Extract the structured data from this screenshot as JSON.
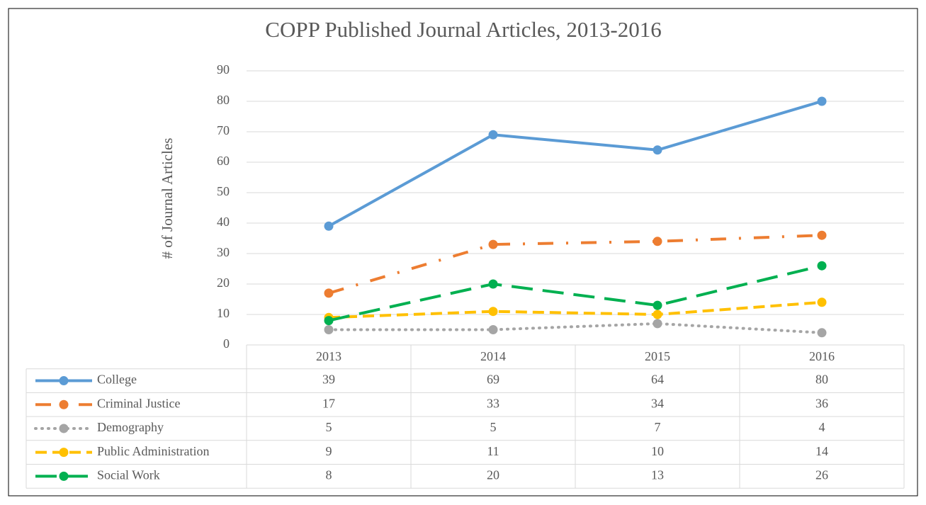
{
  "chart_data": {
    "type": "line",
    "title": "COPP Published Journal Articles, 2013-2016",
    "y_label": "# of Journal Articles",
    "categories": [
      "2013",
      "2014",
      "2015",
      "2016"
    ],
    "series": [
      {
        "name": "College",
        "color": "#5b9bd5",
        "style": "solid",
        "values": [
          39,
          69,
          64,
          80
        ]
      },
      {
        "name": "Criminal Justice",
        "color": "#ed7d31",
        "style": "dashdot",
        "values": [
          17,
          33,
          34,
          36
        ]
      },
      {
        "name": "Demography",
        "color": "#a5a5a5",
        "style": "dot",
        "values": [
          5,
          5,
          7,
          4
        ]
      },
      {
        "name": "Public Administration",
        "color": "#ffc000",
        "style": "dash",
        "values": [
          9,
          11,
          10,
          14
        ]
      },
      {
        "name": "Social Work",
        "color": "#00b050",
        "style": "longdash",
        "values": [
          8,
          20,
          13,
          26
        ]
      }
    ],
    "ylim": [
      0,
      90
    ],
    "yticks": [
      0,
      10,
      20,
      30,
      40,
      50,
      60,
      70,
      80,
      90
    ],
    "grid": true,
    "data_table": true
  }
}
